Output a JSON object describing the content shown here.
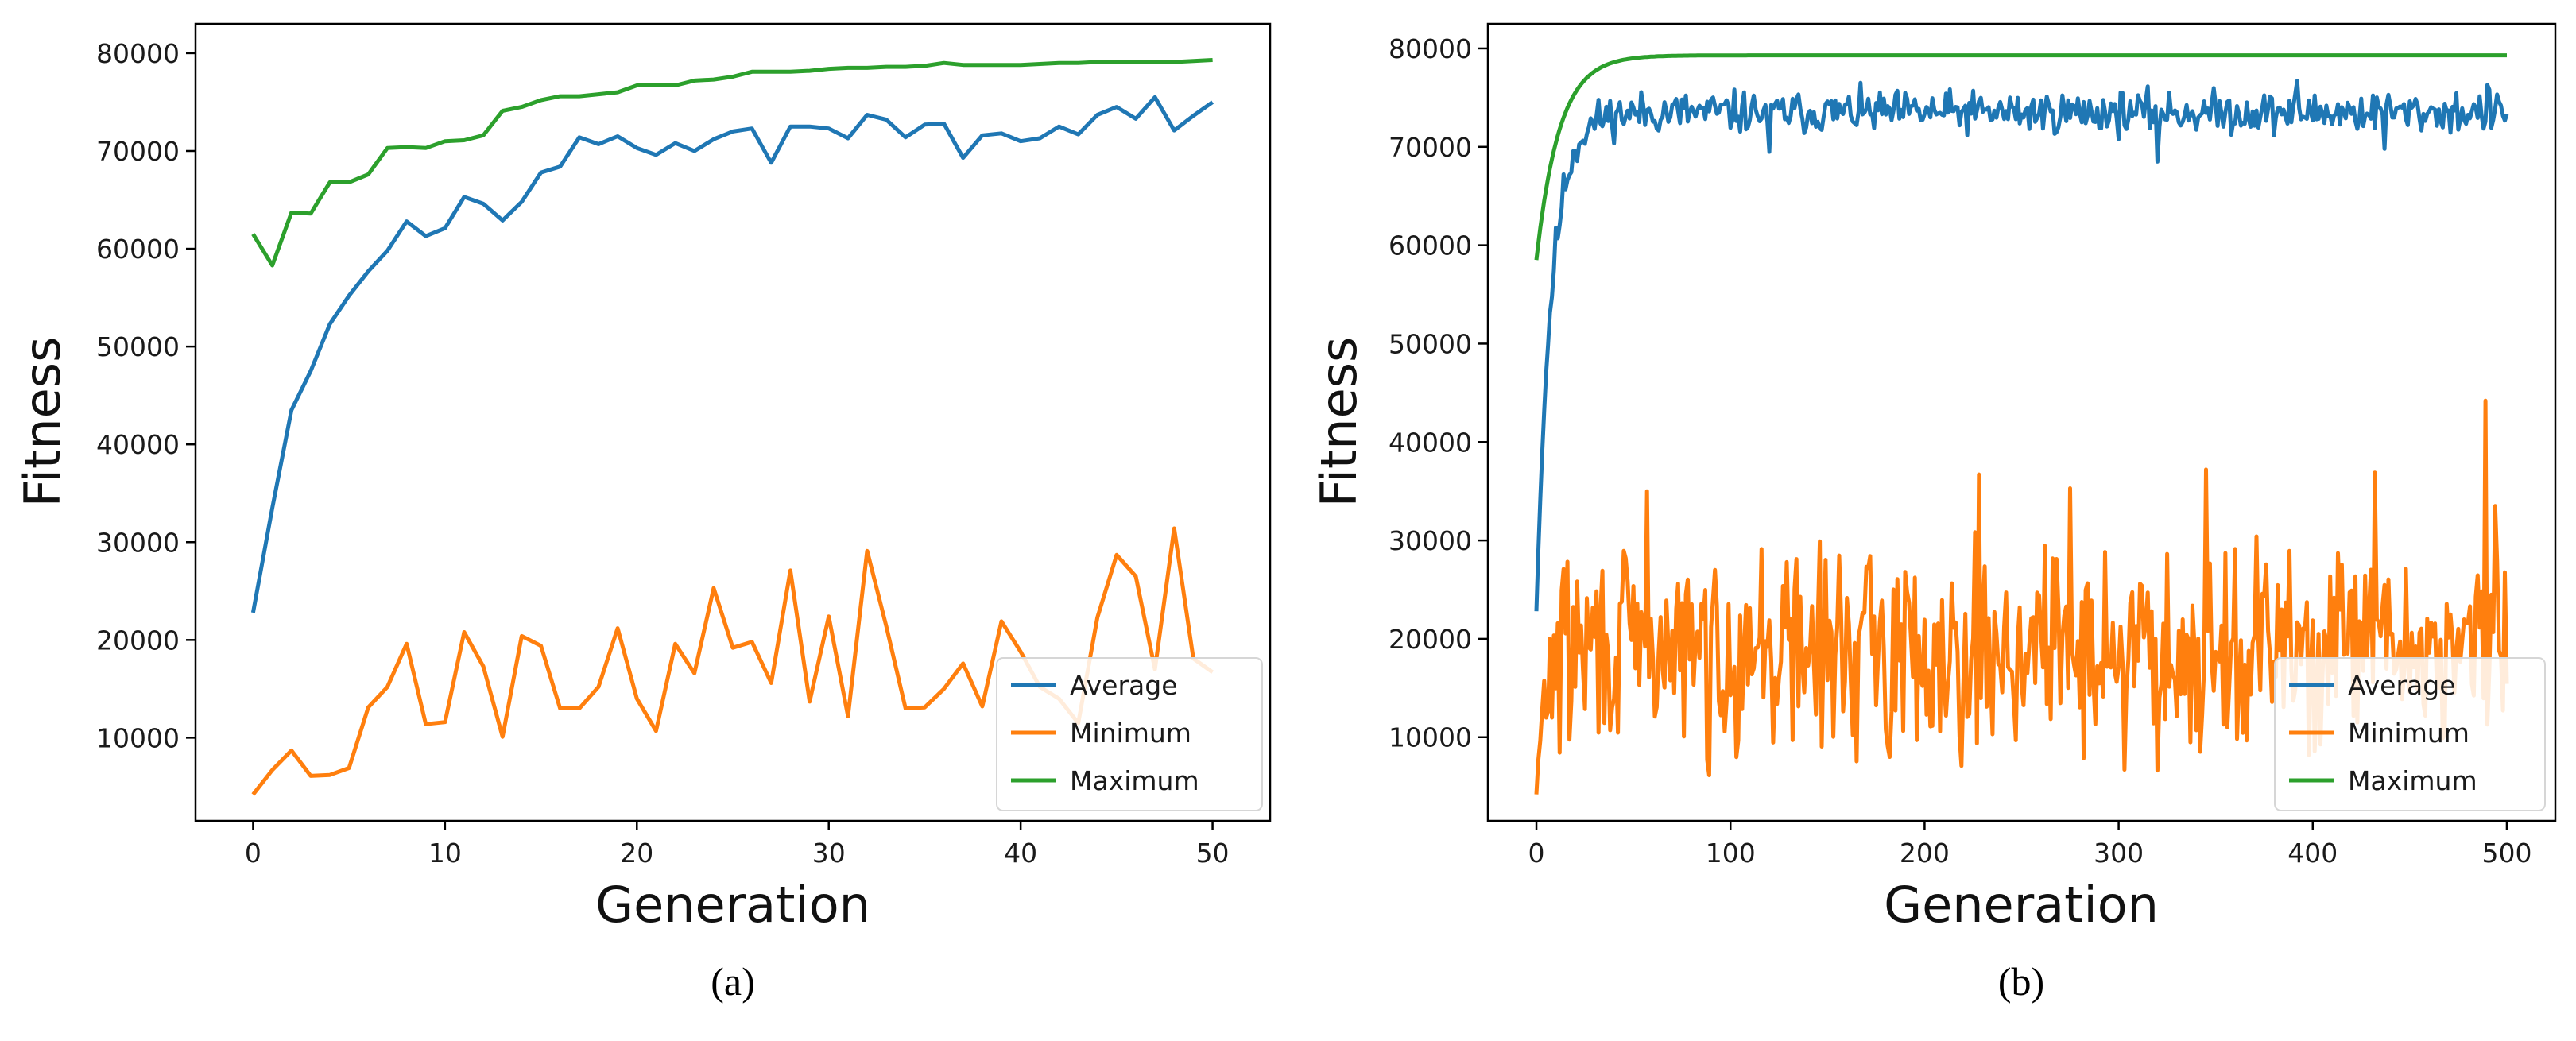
{
  "chart_data": [
    {
      "type": "line",
      "caption": "(a)",
      "xlabel": "Generation",
      "ylabel": "Fitness",
      "xlim": [
        -3,
        53
      ],
      "ylim": [
        1500,
        83000
      ],
      "xticks": [
        0,
        10,
        20,
        30,
        40,
        50
      ],
      "yticks": [
        10000,
        20000,
        30000,
        40000,
        50000,
        60000,
        70000,
        80000
      ],
      "xtick_labels": [
        "0",
        "10",
        "20",
        "30",
        "40",
        "50"
      ],
      "ytick_labels": [
        "10000",
        "20000",
        "30000",
        "40000",
        "50000",
        "60000",
        "70000",
        "80000"
      ],
      "legend_position": "lower-right",
      "series": [
        {
          "name": "Average",
          "color": "#1f77b4",
          "values": [
            22800,
            33500,
            43500,
            47500,
            52300,
            55200,
            57700,
            59800,
            62800,
            61300,
            62100,
            65300,
            64600,
            62900,
            64800,
            67800,
            68400,
            71400,
            70700,
            71500,
            70300,
            69600,
            70800,
            70000,
            71200,
            72000,
            72300,
            68800,
            72500,
            72500,
            72300,
            71300,
            73700,
            73200,
            71400,
            72700,
            72800,
            69300,
            71600,
            71800,
            71000,
            71300,
            72500,
            71700,
            73700,
            74500,
            73300,
            75500,
            72100,
            73600,
            75000
          ]
        },
        {
          "name": "Minimum",
          "color": "#ff7f0e",
          "values": [
            4200,
            6700,
            8700,
            6100,
            6200,
            6900,
            13100,
            15200,
            19600,
            11400,
            11600,
            20800,
            17300,
            10100,
            20400,
            19400,
            13000,
            13000,
            15200,
            21200,
            14000,
            10700,
            19600,
            16600,
            25300,
            19200,
            19800,
            15600,
            27100,
            13700,
            22400,
            12200,
            29100,
            21400,
            13000,
            13100,
            15000,
            17600,
            13200,
            21900,
            18800,
            15200,
            14000,
            11500,
            22300,
            28700,
            26500,
            17000,
            31400,
            18100,
            16700
          ]
        },
        {
          "name": "Maximum",
          "color": "#2ca02c",
          "values": [
            61500,
            58300,
            63700,
            63600,
            66800,
            66800,
            67600,
            70300,
            70400,
            70300,
            71000,
            71100,
            71600,
            74100,
            74500,
            75200,
            75600,
            75600,
            75800,
            76000,
            76700,
            76700,
            76700,
            77200,
            77300,
            77600,
            78100,
            78100,
            78100,
            78200,
            78400,
            78500,
            78500,
            78600,
            78600,
            78700,
            79000,
            78800,
            78800,
            78800,
            78800,
            78900,
            79000,
            79000,
            79100,
            79100,
            79100,
            79100,
            79100,
            79200,
            79300
          ]
        }
      ]
    },
    {
      "type": "line",
      "caption": "(b)",
      "xlabel": "Generation",
      "ylabel": "Fitness",
      "xlim": [
        -25,
        525
      ],
      "ylim": [
        1500,
        82500
      ],
      "xticks": [
        0,
        100,
        200,
        300,
        400,
        500
      ],
      "yticks": [
        10000,
        20000,
        30000,
        40000,
        50000,
        60000,
        70000,
        80000
      ],
      "xtick_labels": [
        "0",
        "100",
        "200",
        "300",
        "400",
        "500"
      ],
      "ytick_labels": [
        "10000",
        "20000",
        "30000",
        "40000",
        "50000",
        "60000",
        "70000",
        "80000"
      ],
      "legend_position": "lower-right",
      "series": [
        {
          "name": "Average",
          "color": "#1f77b4",
          "generated": "noisy",
          "seed": 11,
          "x_end": 500,
          "start": 22800,
          "plateau": 73500,
          "rate": 0.13,
          "noise": 1400,
          "spikes": [
            [
              120,
              69500
            ],
            [
              320,
              68500
            ],
            [
              392,
              76700
            ],
            [
              437,
              69800
            ],
            [
              490,
              76300
            ]
          ]
        },
        {
          "name": "Minimum",
          "color": "#ff7f0e",
          "generated": "noisy",
          "seed": 29,
          "x_end": 500,
          "start": 4200,
          "plateau": 19000,
          "rate": 0.25,
          "noise": 6500,
          "spikes": [
            [
              57,
              35000
            ],
            [
              88,
              7700
            ],
            [
              182,
              8000
            ],
            [
              228,
              36700
            ],
            [
              275,
              35300
            ],
            [
              303,
              6700
            ],
            [
              345,
              37200
            ],
            [
              398,
              8200
            ],
            [
              432,
              36900
            ],
            [
              489,
              44200
            ],
            [
              494,
              33500
            ]
          ]
        },
        {
          "name": "Maximum",
          "color": "#2ca02c",
          "generated": "saturating",
          "x_end": 500,
          "start": 58500,
          "plateau": 79300,
          "rate": 0.085
        }
      ]
    }
  ]
}
